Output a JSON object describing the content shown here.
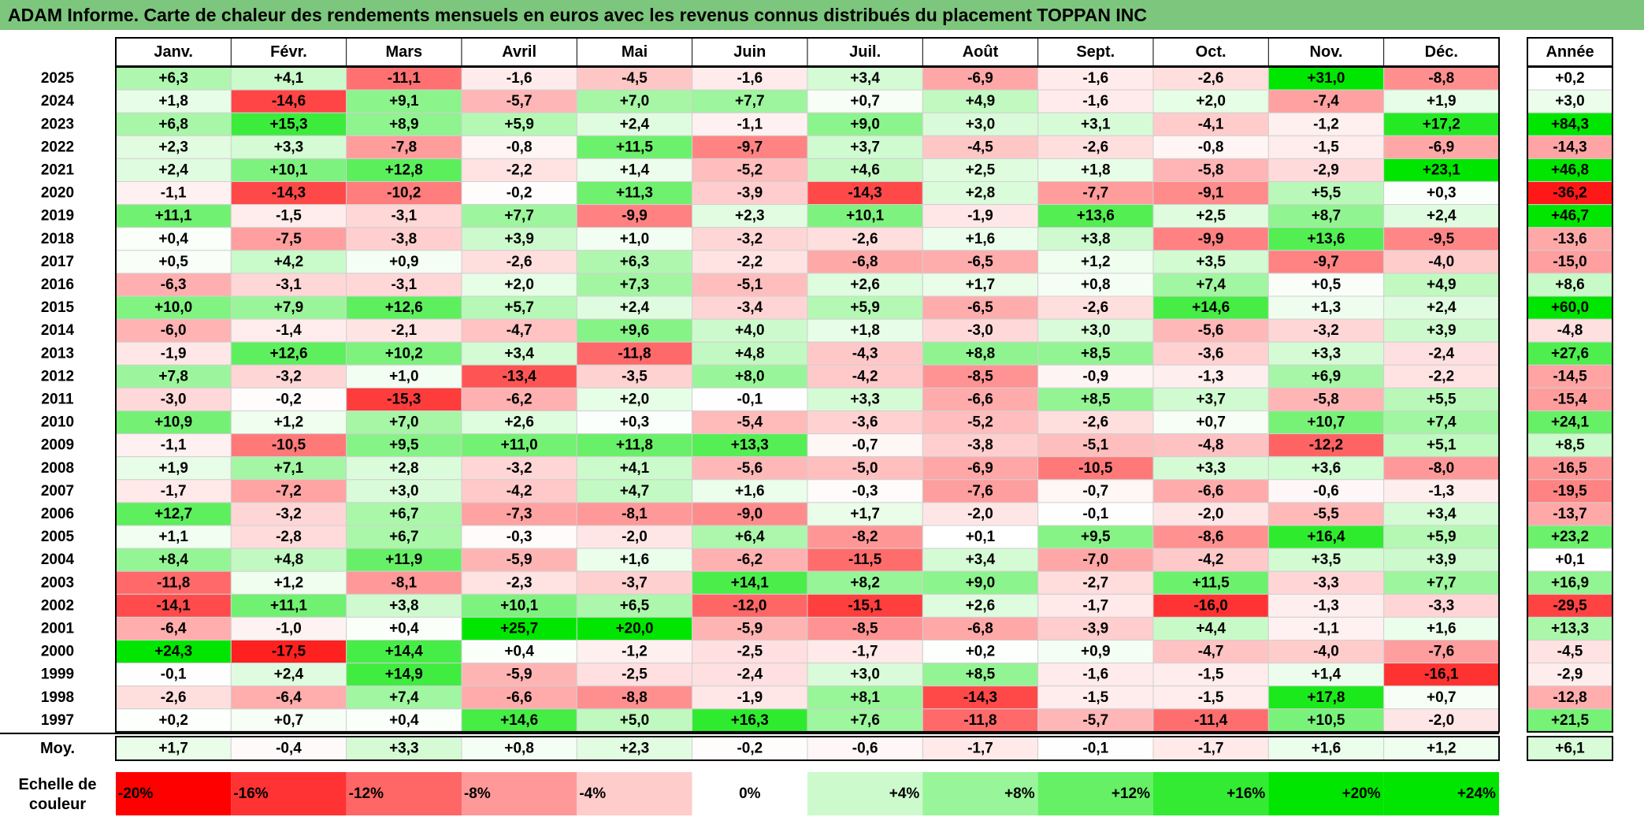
{
  "title": "ADAM Informe. Carte de chaleur des rendements mensuels en euros avec les revenus connus distribués du placement TOPPAN INC",
  "chart_data": {
    "type": "heatmap",
    "columns": [
      "Janv.",
      "Févr.",
      "Mars",
      "Avril",
      "Mai",
      "Juin",
      "Juil.",
      "Août",
      "Sept.",
      "Oct.",
      "Nov.",
      "Déc."
    ],
    "annual_header": "Année",
    "rows": [
      {
        "year": "2025",
        "values": [
          "+6,3",
          "+4,1",
          "-11,1",
          "-1,6",
          "-4,5",
          "-1,6",
          "+3,4",
          "-6,9",
          "-1,6",
          "-2,6",
          "+31,0",
          "-8,8"
        ],
        "annual": "+0,2"
      },
      {
        "year": "2024",
        "values": [
          "+1,8",
          "-14,6",
          "+9,1",
          "-5,7",
          "+7,0",
          "+7,7",
          "+0,7",
          "+4,9",
          "-1,6",
          "+2,0",
          "-7,4",
          "+1,9"
        ],
        "annual": "+3,0"
      },
      {
        "year": "2023",
        "values": [
          "+6,8",
          "+15,3",
          "+8,9",
          "+5,9",
          "+2,4",
          "-1,1",
          "+9,0",
          "+3,0",
          "+3,1",
          "-4,1",
          "-1,2",
          "+17,2"
        ],
        "annual": "+84,3"
      },
      {
        "year": "2022",
        "values": [
          "+2,3",
          "+3,3",
          "-7,8",
          "-0,8",
          "+11,5",
          "-9,7",
          "+3,7",
          "-4,5",
          "-2,6",
          "-0,8",
          "-1,5",
          "-6,9"
        ],
        "annual": "-14,3"
      },
      {
        "year": "2021",
        "values": [
          "+2,4",
          "+10,1",
          "+12,8",
          "-2,2",
          "+1,4",
          "-5,2",
          "+4,6",
          "+2,5",
          "+1,8",
          "-5,8",
          "-2,9",
          "+23,1"
        ],
        "annual": "+46,8"
      },
      {
        "year": "2020",
        "values": [
          "-1,1",
          "-14,3",
          "-10,2",
          "-0,2",
          "+11,3",
          "-3,9",
          "-14,3",
          "+2,8",
          "-7,7",
          "-9,1",
          "+5,5",
          "+0,3"
        ],
        "annual": "-36,2"
      },
      {
        "year": "2019",
        "values": [
          "+11,1",
          "-1,5",
          "-3,1",
          "+7,7",
          "-9,9",
          "+2,3",
          "+10,1",
          "-1,9",
          "+13,6",
          "+2,5",
          "+8,7",
          "+2,4"
        ],
        "annual": "+46,7"
      },
      {
        "year": "2018",
        "values": [
          "+0,4",
          "-7,5",
          "-3,8",
          "+3,9",
          "+1,0",
          "-3,2",
          "-2,6",
          "+1,6",
          "+3,8",
          "-9,9",
          "+13,6",
          "-9,5"
        ],
        "annual": "-13,6"
      },
      {
        "year": "2017",
        "values": [
          "+0,5",
          "+4,2",
          "+0,9",
          "-2,6",
          "+6,3",
          "-2,2",
          "-6,8",
          "-6,5",
          "+1,2",
          "+3,5",
          "-9,7",
          "-4,0"
        ],
        "annual": "-15,0"
      },
      {
        "year": "2016",
        "values": [
          "-6,3",
          "-3,1",
          "-3,1",
          "+2,0",
          "+7,3",
          "-5,1",
          "+2,6",
          "+1,7",
          "+0,8",
          "+7,4",
          "+0,5",
          "+4,9"
        ],
        "annual": "+8,6"
      },
      {
        "year": "2015",
        "values": [
          "+10,0",
          "+7,9",
          "+12,6",
          "+5,7",
          "+2,4",
          "-3,4",
          "+5,9",
          "-6,5",
          "-2,6",
          "+14,6",
          "+1,3",
          "+2,4"
        ],
        "annual": "+60,0"
      },
      {
        "year": "2014",
        "values": [
          "-6,0",
          "-1,4",
          "-2,1",
          "-4,7",
          "+9,6",
          "+4,0",
          "+1,8",
          "-3,0",
          "+3,0",
          "-5,6",
          "-3,2",
          "+3,9"
        ],
        "annual": "-4,8"
      },
      {
        "year": "2013",
        "values": [
          "-1,9",
          "+12,6",
          "+10,2",
          "+3,4",
          "-11,8",
          "+4,8",
          "-4,3",
          "+8,8",
          "+8,5",
          "-3,6",
          "+3,3",
          "-2,4"
        ],
        "annual": "+27,6"
      },
      {
        "year": "2012",
        "values": [
          "+7,8",
          "-3,2",
          "+1,0",
          "-13,4",
          "-3,5",
          "+8,0",
          "-4,2",
          "-8,5",
          "-0,9",
          "-1,3",
          "+6,9",
          "-2,2"
        ],
        "annual": "-14,5"
      },
      {
        "year": "2011",
        "values": [
          "-3,0",
          "-0,2",
          "-15,3",
          "-6,2",
          "+2,0",
          "-0,1",
          "+3,3",
          "-6,6",
          "+8,5",
          "+3,7",
          "-5,8",
          "+5,5"
        ],
        "annual": "-15,4"
      },
      {
        "year": "2010",
        "values": [
          "+10,9",
          "+1,2",
          "+7,0",
          "+2,6",
          "+0,3",
          "-5,4",
          "-3,6",
          "-5,2",
          "-2,6",
          "+0,7",
          "+10,7",
          "+7,4"
        ],
        "annual": "+24,1"
      },
      {
        "year": "2009",
        "values": [
          "-1,1",
          "-10,5",
          "+9,5",
          "+11,0",
          "+11,8",
          "+13,3",
          "-0,7",
          "-3,8",
          "-5,1",
          "-4,8",
          "-12,2",
          "+5,1"
        ],
        "annual": "+8,5"
      },
      {
        "year": "2008",
        "values": [
          "+1,9",
          "+7,1",
          "+2,8",
          "-3,2",
          "+4,1",
          "-5,6",
          "-5,0",
          "-6,9",
          "-10,5",
          "+3,3",
          "+3,6",
          "-8,0"
        ],
        "annual": "-16,5"
      },
      {
        "year": "2007",
        "values": [
          "-1,7",
          "-7,2",
          "+3,0",
          "-4,2",
          "+4,7",
          "+1,6",
          "-0,3",
          "-7,6",
          "-0,7",
          "-6,6",
          "-0,6",
          "-1,3"
        ],
        "annual": "-19,5"
      },
      {
        "year": "2006",
        "values": [
          "+12,7",
          "-3,2",
          "+6,7",
          "-7,3",
          "-8,1",
          "-9,0",
          "+1,7",
          "-2,0",
          "-0,1",
          "-2,0",
          "-5,5",
          "+3,4"
        ],
        "annual": "-13,7"
      },
      {
        "year": "2005",
        "values": [
          "+1,1",
          "-2,8",
          "+6,7",
          "-0,3",
          "-2,0",
          "+6,4",
          "-8,2",
          "+0,1",
          "+9,5",
          "-8,6",
          "+16,4",
          "+5,9"
        ],
        "annual": "+23,2"
      },
      {
        "year": "2004",
        "values": [
          "+8,4",
          "+4,8",
          "+11,9",
          "-5,9",
          "+1,6",
          "-6,2",
          "-11,5",
          "+3,4",
          "-7,0",
          "-4,2",
          "+3,5",
          "+3,9"
        ],
        "annual": "+0,1"
      },
      {
        "year": "2003",
        "values": [
          "-11,8",
          "+1,2",
          "-8,1",
          "-2,3",
          "-3,7",
          "+14,1",
          "+8,2",
          "+9,0",
          "-2,7",
          "+11,5",
          "-3,3",
          "+7,7"
        ],
        "annual": "+16,9"
      },
      {
        "year": "2002",
        "values": [
          "-14,1",
          "+11,1",
          "+3,8",
          "+10,1",
          "+6,5",
          "-12,0",
          "-15,1",
          "+2,6",
          "-1,7",
          "-16,0",
          "-1,3",
          "-3,3"
        ],
        "annual": "-29,5"
      },
      {
        "year": "2001",
        "values": [
          "-6,4",
          "-1,0",
          "+0,4",
          "+25,7",
          "+20,0",
          "-5,9",
          "-8,5",
          "-6,8",
          "-3,9",
          "+4,4",
          "-1,1",
          "+1,6"
        ],
        "annual": "+13,3"
      },
      {
        "year": "2000",
        "values": [
          "+24,3",
          "-17,5",
          "+14,4",
          "+0,4",
          "-1,2",
          "-2,5",
          "-1,7",
          "+0,2",
          "+0,9",
          "-4,7",
          "-4,0",
          "-7,6"
        ],
        "annual": "-4,5"
      },
      {
        "year": "1999",
        "values": [
          "-0,1",
          "+2,4",
          "+14,9",
          "-5,9",
          "-2,5",
          "-2,4",
          "+3,0",
          "+8,5",
          "-1,6",
          "-1,5",
          "+1,4",
          "-16,1"
        ],
        "annual": "-2,9"
      },
      {
        "year": "1998",
        "values": [
          "-2,6",
          "-6,4",
          "+7,4",
          "-6,6",
          "-8,8",
          "-1,9",
          "+8,1",
          "-14,3",
          "-1,5",
          "-1,5",
          "+17,8",
          "+0,7"
        ],
        "annual": "-12,8"
      },
      {
        "year": "1997",
        "values": [
          "+0,2",
          "+0,7",
          "+0,4",
          "+14,6",
          "+5,0",
          "+16,3",
          "+7,6",
          "-11,8",
          "-5,7",
          "-11,4",
          "+10,5",
          "-2,0"
        ],
        "annual": "+21,5"
      }
    ],
    "average": {
      "label": "Moy.",
      "values": [
        "+1,7",
        "-0,4",
        "+3,3",
        "+0,8",
        "+2,3",
        "-0,2",
        "-0,6",
        "-1,7",
        "-0,1",
        "-1,7",
        "+1,6",
        "+1,2"
      ],
      "annual": "+6,1"
    },
    "color_scale": {
      "label_line1": "Echelle de",
      "label_line2": "couleur",
      "stops": [
        "-20%",
        "-16%",
        "-12%",
        "-8%",
        "-4%",
        "0%",
        "+4%",
        "+8%",
        "+12%",
        "+16%",
        "+20%",
        "+24%"
      ]
    },
    "colors": {
      "title_bg": "#7dc67d",
      "negative_max": "#ff0000",
      "neutral": "#ffffff",
      "positive_max": "#00e600"
    }
  }
}
